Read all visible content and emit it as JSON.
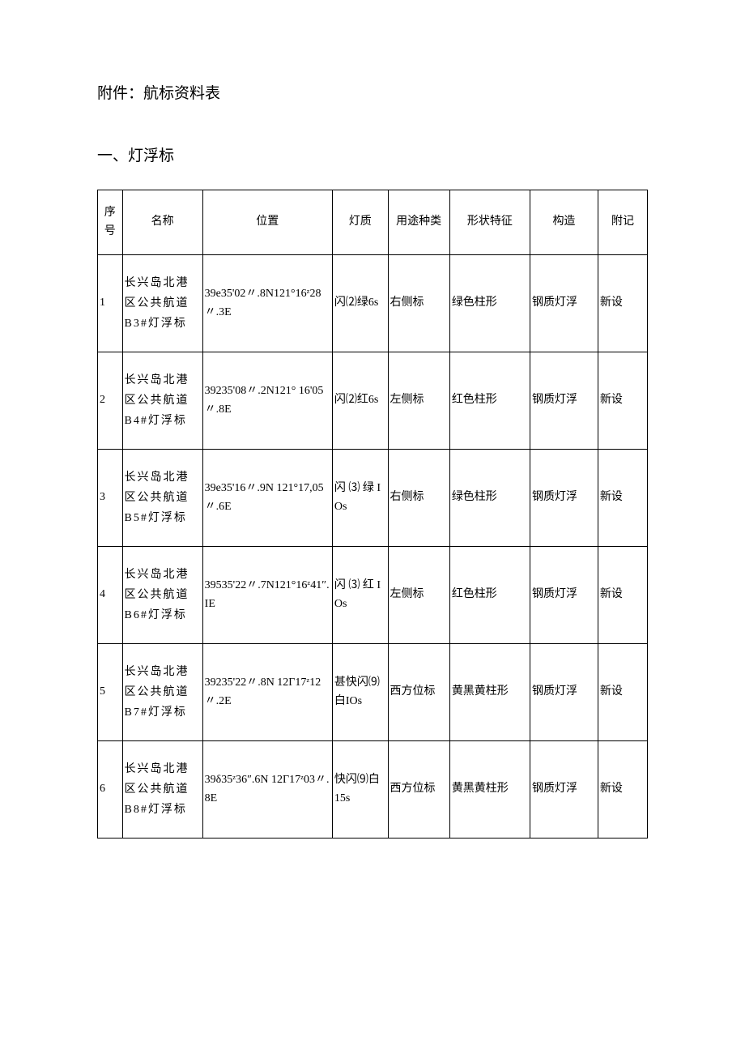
{
  "document": {
    "title_prefix": "附件：",
    "title": "航标资料表",
    "subtitle": "一、灯浮标"
  },
  "table": {
    "headers": {
      "seq": "序号",
      "name": "名称",
      "position": "位置",
      "quality": "灯质",
      "usage": "用途种类",
      "shape": "形状特征",
      "structure": "构造",
      "note": "附记"
    },
    "rows": [
      {
        "seq": "1",
        "name": "长兴岛北港区公共航道 B3#灯浮标",
        "position": "39e35'02〃.8N121°16ᶻ28〃.3E",
        "quality": "闪⑵绿6s",
        "usage": "右侧标",
        "shape": "绿色柱形",
        "structure": "钢质灯浮",
        "note": "新设"
      },
      {
        "seq": "2",
        "name": "长兴岛北港区公共航道 B4#灯浮标",
        "position": "39235'08〃.2N121° 16'05〃.8E",
        "quality": "闪⑵红6s",
        "usage": "左侧标",
        "shape": "红色柱形",
        "structure": "钢质灯浮",
        "note": "新设"
      },
      {
        "seq": "3",
        "name": "长兴岛北港区公共航道 B5#灯浮标",
        "position": "39e35'16〃.9N 121°17,05〃.6E",
        "quality": "闪 ⑶ 绿 IOs",
        "usage": "右侧标",
        "shape": "绿色柱形",
        "structure": "钢质灯浮",
        "note": "新设"
      },
      {
        "seq": "4",
        "name": "长兴岛北港区公共航道 B6#灯浮标",
        "position": "39535'22〃.7N121°16ᶻ41″.IE",
        "quality": "闪 ⑶ 红 IOs",
        "usage": "左侧标",
        "shape": "红色柱形",
        "structure": "钢质灯浮",
        "note": "新设"
      },
      {
        "seq": "5",
        "name": "长兴岛北港区公共航道 B7#灯浮标",
        "position": "39235'22〃.8N 12Γ17ᶻ12〃.2E",
        "quality": "甚快闪⑼白IOs",
        "usage": "西方位标",
        "shape": "黄黑黄柱形",
        "structure": "钢质灯浮",
        "note": "新设"
      },
      {
        "seq": "6",
        "name": "长兴岛北港区公共航道 B8#灯浮标",
        "position": "39δ35ᶻ36″.6N 12Γ17ᶻ03〃.8E",
        "quality": "快闪⑼白 15s",
        "usage": "西方位标",
        "shape": "黄黑黄柱形",
        "structure": "钢质灯浮",
        "note": "新设"
      }
    ]
  },
  "styling": {
    "background_color": "#ffffff",
    "text_color": "#000000",
    "border_color": "#000000",
    "font_family": "SimSun",
    "title_fontsize": 19,
    "body_fontsize": 14
  }
}
